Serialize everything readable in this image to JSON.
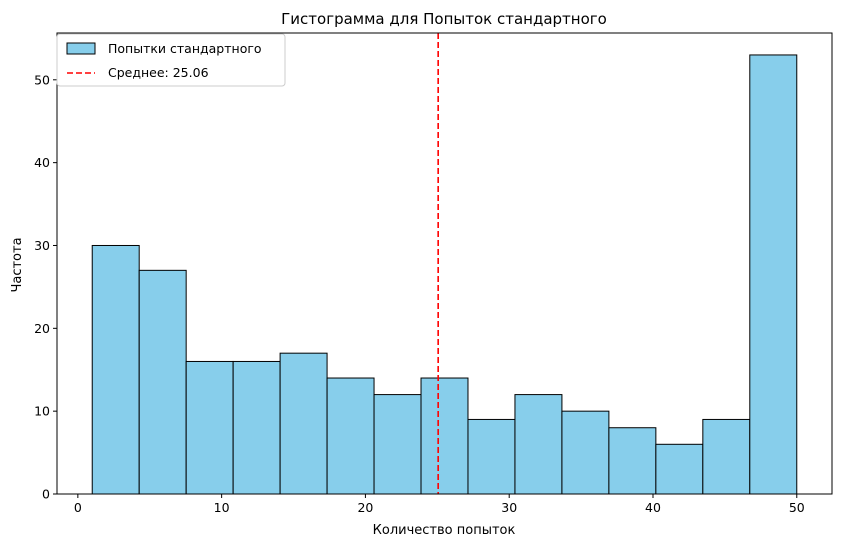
{
  "chart_data": {
    "type": "bar",
    "title": "Гистограмма для Попыток стандартного",
    "xlabel": "Количество попыток",
    "ylabel": "Частота",
    "xlim": [
      -1.45,
      52.45
    ],
    "ylim": [
      0,
      55.65
    ],
    "xticks": [
      0,
      10,
      20,
      30,
      40,
      50
    ],
    "yticks": [
      0,
      10,
      20,
      30,
      40,
      50
    ],
    "bin_edges": [
      1,
      4.2667,
      7.5333,
      10.8,
      14.0667,
      17.3333,
      20.6,
      23.8667,
      27.1333,
      30.4,
      33.6667,
      36.9333,
      40.2,
      43.4667,
      46.7333,
      50
    ],
    "values": [
      30,
      27,
      16,
      16,
      17,
      14,
      12,
      14,
      9,
      12,
      10,
      8,
      6,
      9,
      53
    ],
    "series": [
      {
        "name": "Попытки стандартного",
        "color": "#87ceeb",
        "edge_color": "#000000"
      }
    ],
    "mean_line": {
      "label": "Среднее: 25.06",
      "value": 25.06,
      "color": "#ff0000",
      "style": "dashed"
    },
    "legend_position": "top-left",
    "grid": false
  }
}
